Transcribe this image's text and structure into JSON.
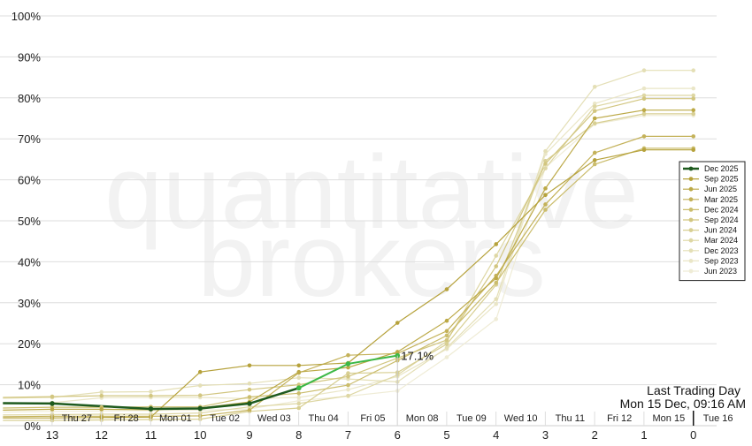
{
  "chart_data": {
    "type": "line",
    "watermark": [
      "quantitative",
      "brokers"
    ],
    "ylim": [
      0,
      100
    ],
    "y_ticks": [
      "0%",
      "10%",
      "20%",
      "30%",
      "40%",
      "50%",
      "60%",
      "70%",
      "80%",
      "90%",
      "100%"
    ],
    "x_ticks": [
      "13",
      "12",
      "11",
      "10",
      "9",
      "8",
      "7",
      "6",
      "5",
      "4",
      "3",
      "2",
      "1",
      "0"
    ],
    "day_labels": [
      "Thu 27",
      "Fri 28",
      "Mon 01",
      "Tue 02",
      "Wed 03",
      "Thu 04",
      "Fri 05",
      "Mon 08",
      "Tue 09",
      "Wed 10",
      "Thu 11",
      "Fri 12",
      "Mon 15",
      "Tue 16"
    ],
    "annotation": {
      "title": "Last Trading Day",
      "subtitle": "Mon 15 Dec, 09:16 AM",
      "x": 0
    },
    "current_label": {
      "text": "17.1%",
      "x": 6,
      "y": 17.1
    },
    "highlight_segment": {
      "color": "#3cb846",
      "x": [
        8,
        7,
        6
      ],
      "y": [
        9.2,
        15.1,
        17.1
      ]
    },
    "legend_position": "right",
    "series": [
      {
        "name": "Dec 2025",
        "color": "#1e5a1e",
        "x": [
          14,
          13,
          11,
          10,
          9,
          8
        ],
        "y": [
          5.5,
          5.4,
          4.1,
          4.2,
          5.4,
          9.2
        ]
      },
      {
        "name": "Sep 2025",
        "color": "#b6a23c",
        "x": [
          14,
          13,
          12,
          11,
          10,
          9,
          8,
          7,
          6,
          5,
          4,
          3,
          2,
          1,
          0
        ],
        "y": [
          1.9,
          1.9,
          2.0,
          2.1,
          13.1,
          14.7,
          14.7,
          15.3,
          25.1,
          33.3,
          44.3,
          56.3,
          64.8,
          67.3,
          67.3
        ]
      },
      {
        "name": "Jun 2025",
        "color": "#bca947",
        "x": [
          14,
          13,
          12,
          11,
          10,
          9,
          8,
          7,
          6,
          5,
          4,
          3,
          2,
          1,
          0
        ],
        "y": [
          3.8,
          4.0,
          4.0,
          3.9,
          4.3,
          5.8,
          13.1,
          14.2,
          18.0,
          25.6,
          36.0,
          57.9,
          75.0,
          77.0,
          77.0
        ]
      },
      {
        "name": "Mar 2025",
        "color": "#c4b25a",
        "x": [
          14,
          13,
          12,
          11,
          10,
          9,
          8,
          7,
          6,
          5,
          4,
          3,
          2,
          1,
          0
        ],
        "y": [
          2.2,
          2.3,
          2.3,
          2.3,
          2.4,
          3.8,
          12.9,
          17.2,
          17.6,
          23.1,
          36.6,
          54.0,
          66.6,
          70.6,
          70.6
        ]
      },
      {
        "name": "Dec 2024",
        "color": "#cbbd6d",
        "x": [
          14,
          13,
          12,
          11,
          10,
          9,
          8,
          7,
          6,
          5,
          4,
          3,
          2,
          1,
          0
        ],
        "y": [
          4.3,
          4.5,
          4.5,
          4.6,
          4.6,
          7.0,
          7.9,
          9.9,
          15.9,
          22.0,
          34.9,
          52.7,
          63.8,
          67.7,
          67.7
        ]
      },
      {
        "name": "Sep 2024",
        "color": "#d2c680",
        "x": [
          14,
          13,
          12,
          11,
          10,
          9,
          8,
          7,
          6,
          5,
          4,
          3,
          2,
          1,
          0
        ],
        "y": [
          6.9,
          7.1,
          7.3,
          7.3,
          7.4,
          8.8,
          10.0,
          12.0,
          16.5,
          20.9,
          38.9,
          63.9,
          76.8,
          79.8,
          79.8
        ]
      },
      {
        "name": "Jun 2024",
        "color": "#d8cf93",
        "x": [
          14,
          13,
          12,
          11,
          10,
          9,
          8,
          7,
          6,
          5,
          4,
          3,
          2,
          1,
          0
        ],
        "y": [
          1.3,
          1.3,
          1.4,
          1.5,
          1.6,
          3.5,
          4.3,
          12.8,
          13.0,
          19.9,
          34.4,
          64.6,
          73.8,
          76.1,
          76.1
        ]
      },
      {
        "name": "Mar 2024",
        "color": "#ded7a4",
        "x": [
          14,
          13,
          12,
          11,
          10,
          9,
          8,
          7,
          6,
          5,
          4,
          3,
          2,
          1,
          0
        ],
        "y": [
          2.6,
          2.7,
          2.8,
          2.8,
          3.1,
          4.6,
          5.4,
          7.3,
          12.4,
          20.6,
          41.5,
          62.8,
          77.9,
          80.6,
          80.6
        ]
      },
      {
        "name": "Dec 2023",
        "color": "#e4dfb6",
        "x": [
          14,
          13,
          12,
          11,
          10,
          9,
          8,
          7,
          6,
          5,
          4,
          3,
          2,
          1,
          0
        ],
        "y": [
          6.7,
          6.9,
          8.2,
          8.3,
          9.8,
          10.3,
          11.7,
          11.4,
          10.7,
          19.0,
          30.9,
          67.0,
          82.7,
          86.7,
          86.7
        ]
      },
      {
        "name": "Sep 2023",
        "color": "#eae6c7",
        "x": [
          14,
          13,
          12,
          11,
          10,
          9,
          8,
          7,
          6,
          5,
          4,
          3,
          2,
          1,
          0
        ],
        "y": [
          5.3,
          5.6,
          6.8,
          6.9,
          6.9,
          6.6,
          6.9,
          8.8,
          12.0,
          18.7,
          29.7,
          66.3,
          78.6,
          82.3,
          82.3
        ]
      },
      {
        "name": "Jun 2023",
        "color": "#efecd6",
        "x": [
          14,
          13,
          12,
          11,
          10,
          9,
          8,
          7,
          6,
          5,
          4,
          3,
          2,
          1,
          0
        ],
        "y": [
          3.3,
          3.5,
          3.6,
          3.7,
          3.8,
          4.1,
          6.1,
          7.2,
          8.5,
          16.7,
          26.0,
          63.0,
          73.6,
          75.7,
          75.7
        ]
      }
    ]
  }
}
